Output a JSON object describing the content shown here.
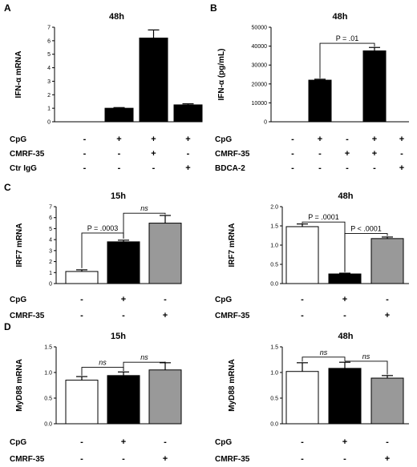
{
  "chart_data": [
    {
      "panel": "A",
      "type": "bar",
      "title": "48h",
      "ylabel": "IFN-α mRNA",
      "ylim": [
        0,
        7
      ],
      "yticks": [
        0,
        1,
        2,
        3,
        4,
        5,
        6,
        7
      ],
      "values": [
        0,
        1.0,
        6.2,
        1.25
      ],
      "errors": [
        0,
        0.05,
        0.6,
        0.08
      ],
      "fills": [
        "#000000",
        "#000000",
        "#000000",
        "#000000"
      ],
      "rows": [
        {
          "label": "CpG",
          "signs": [
            "-",
            "+",
            "+",
            "+"
          ]
        },
        {
          "label": "CMRF-35",
          "signs": [
            "-",
            "-",
            "+",
            "-"
          ]
        },
        {
          "label": "Ctr IgG",
          "signs": [
            "-",
            "-",
            "-",
            "+"
          ]
        }
      ],
      "annotations": []
    },
    {
      "panel": "B",
      "type": "bar",
      "title": "48h",
      "ylabel": "IFN-α (pg/mL)",
      "ylim": [
        0,
        50000
      ],
      "yticks": [
        0,
        10000,
        20000,
        30000,
        40000,
        50000
      ],
      "values": [
        0,
        22000,
        0,
        37500,
        0
      ],
      "errors": [
        0,
        500,
        0,
        1800,
        0
      ],
      "fills": [
        "#000000",
        "#000000",
        "#000000",
        "#000000",
        "#000000"
      ],
      "rows": [
        {
          "label": "CpG",
          "signs": [
            "-",
            "+",
            "-",
            "+",
            "+"
          ]
        },
        {
          "label": "CMRF-35",
          "signs": [
            "-",
            "-",
            "+",
            "+",
            "-"
          ]
        },
        {
          "label": "BDCA-2",
          "signs": [
            "-",
            "-",
            "-",
            "-",
            "+"
          ]
        }
      ],
      "annotations": [
        {
          "from": 1,
          "to": 3,
          "y": 41500,
          "drop_from": 23000,
          "drop_to": 39800,
          "text": "P = .01",
          "italic": false
        }
      ]
    },
    {
      "panel": "C",
      "type": "bar",
      "title": "15h",
      "ylabel": "IRF7 mRNA",
      "ylim": [
        0,
        7
      ],
      "yticks": [
        0,
        1,
        2,
        3,
        4,
        5,
        6,
        7
      ],
      "values": [
        1.1,
        3.8,
        5.5
      ],
      "errors": [
        0.15,
        0.15,
        0.7
      ],
      "fills": [
        "#ffffff",
        "#000000",
        "#999999"
      ],
      "rows": [
        {
          "label": "CpG",
          "signs": [
            "-",
            "+",
            "-"
          ]
        },
        {
          "label": "CMRF-35",
          "signs": [
            "-",
            "-",
            "+"
          ]
        }
      ],
      "annotations": [
        {
          "from": 0,
          "to": 1,
          "y": 4.6,
          "drop_from": 1.4,
          "drop_to": 4.1,
          "text": "P = .0003",
          "italic": false
        },
        {
          "from": 1,
          "to": 2,
          "y": 6.4,
          "drop_from": 4.1,
          "drop_to": 6.3,
          "text": "ns",
          "italic": true
        }
      ]
    },
    {
      "panel": "C2",
      "type": "bar",
      "title": "48h",
      "ylabel": "IRF7 mRNA",
      "ylim": [
        0,
        2.0
      ],
      "yticks": [
        0.0,
        0.5,
        1.0,
        1.5,
        2.0
      ],
      "values": [
        1.48,
        0.25,
        1.17
      ],
      "errors": [
        0.07,
        0.02,
        0.04
      ],
      "fills": [
        "#ffffff",
        "#000000",
        "#999999"
      ],
      "rows": [
        {
          "label": "CpG",
          "signs": [
            "-",
            "+",
            "-"
          ]
        },
        {
          "label": "CMRF-35",
          "signs": [
            "-",
            "-",
            "+"
          ]
        }
      ],
      "annotations": [
        {
          "from": 0,
          "to": 1,
          "y": 1.6,
          "drop_from": 1.57,
          "drop_to": 0.3,
          "text": "P = .0001",
          "italic": false
        },
        {
          "from": 1,
          "to": 2,
          "y": 1.3,
          "drop_from": 0.3,
          "drop_to": 1.24,
          "text": "P < .0001",
          "italic": false
        }
      ]
    },
    {
      "panel": "D",
      "type": "bar",
      "title": "15h",
      "ylabel": "MyD88 mRNA",
      "ylim": [
        0,
        1.5
      ],
      "yticks": [
        0.0,
        0.5,
        1.0,
        1.5
      ],
      "values": [
        0.85,
        0.94,
        1.05
      ],
      "errors": [
        0.07,
        0.07,
        0.14
      ],
      "fills": [
        "#ffffff",
        "#000000",
        "#999999"
      ],
      "rows": [
        {
          "label": "CpG",
          "signs": [
            "-",
            "+",
            "-"
          ]
        },
        {
          "label": "CMRF-35",
          "signs": [
            "-",
            "-",
            "+"
          ]
        }
      ],
      "annotations": [
        {
          "from": 0,
          "to": 1,
          "y": 1.1,
          "drop_from": 0.94,
          "drop_to": 1.03,
          "text": "ns",
          "italic": true
        },
        {
          "from": 1,
          "to": 2,
          "y": 1.2,
          "drop_from": 1.03,
          "drop_to": 1.21,
          "text": "ns",
          "italic": true
        }
      ]
    },
    {
      "panel": "D2",
      "type": "bar",
      "title": "48h",
      "ylabel": "MyD88 mRNA",
      "ylim": [
        0,
        1.5
      ],
      "yticks": [
        0.0,
        0.5,
        1.0,
        1.5
      ],
      "values": [
        1.02,
        1.08,
        0.89
      ],
      "errors": [
        0.17,
        0.12,
        0.05
      ],
      "fills": [
        "#ffffff",
        "#000000",
        "#999999"
      ],
      "rows": [
        {
          "label": "CpG",
          "signs": [
            "-",
            "+",
            "-"
          ]
        },
        {
          "label": "CMRF-35",
          "signs": [
            "-",
            "-",
            "+"
          ]
        }
      ],
      "annotations": [
        {
          "from": 0,
          "to": 1,
          "y": 1.3,
          "drop_from": 1.21,
          "drop_to": 1.22,
          "text": "ns",
          "italic": true
        },
        {
          "from": 1,
          "to": 2,
          "y": 1.22,
          "drop_from": 1.22,
          "drop_to": 0.96,
          "text": "ns",
          "italic": true
        }
      ]
    }
  ]
}
